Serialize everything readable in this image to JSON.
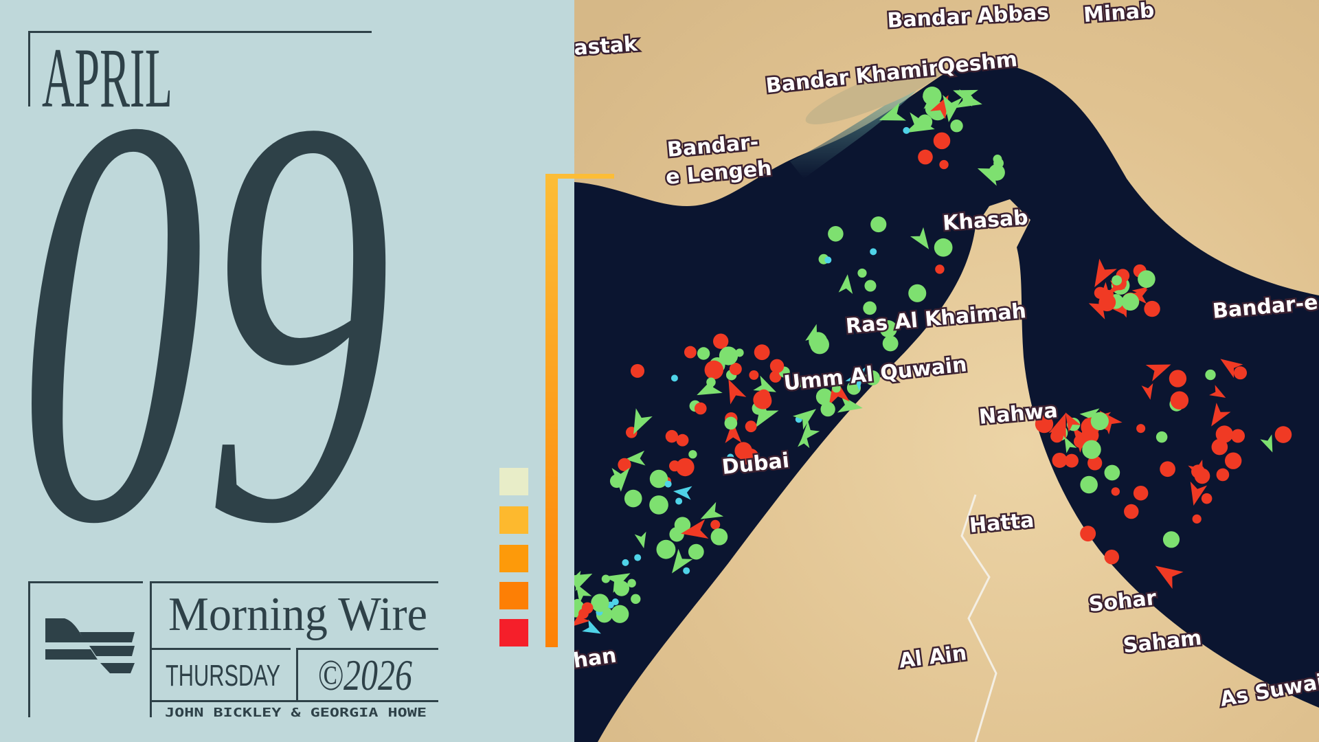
{
  "header": {
    "month": "APRIL",
    "day": "09"
  },
  "brand": {
    "title": "Morning Wire",
    "weekday": "THURSDAY",
    "copyright": "©2026",
    "authors": "JOHN BICKLEY & GEORGIA HOWE",
    "logo": "flag-stripes-logo"
  },
  "palette": {
    "text": "#2e4148",
    "background": "#bfd8da",
    "swatches": [
      "#e8edc8",
      "#fdb92e",
      "#fd9a0a",
      "#fd7f05",
      "#f51f2a"
    ],
    "accent_bar": [
      "#fcbd36",
      "#fd8105"
    ]
  },
  "map": {
    "labels": [
      "Bandar Abbas",
      "Minab",
      "astak",
      "Bandar Khamir",
      "Qeshm",
      "Bandar-",
      "e Lengeh",
      "Khasab",
      "Ras Al Khaimah",
      "Umm Al Quwain",
      "Bandar-e Ja",
      "Nahwa",
      "Dubai",
      "Hatta",
      "Sohar",
      "Saham",
      "Al Ain",
      "As Suwaiq",
      "han"
    ],
    "marker_colors": {
      "green": "#7ee070",
      "red": "#f03a24",
      "cyan": "#4fd3e8"
    },
    "water": "#0b1530",
    "land": "#e3c99a"
  }
}
